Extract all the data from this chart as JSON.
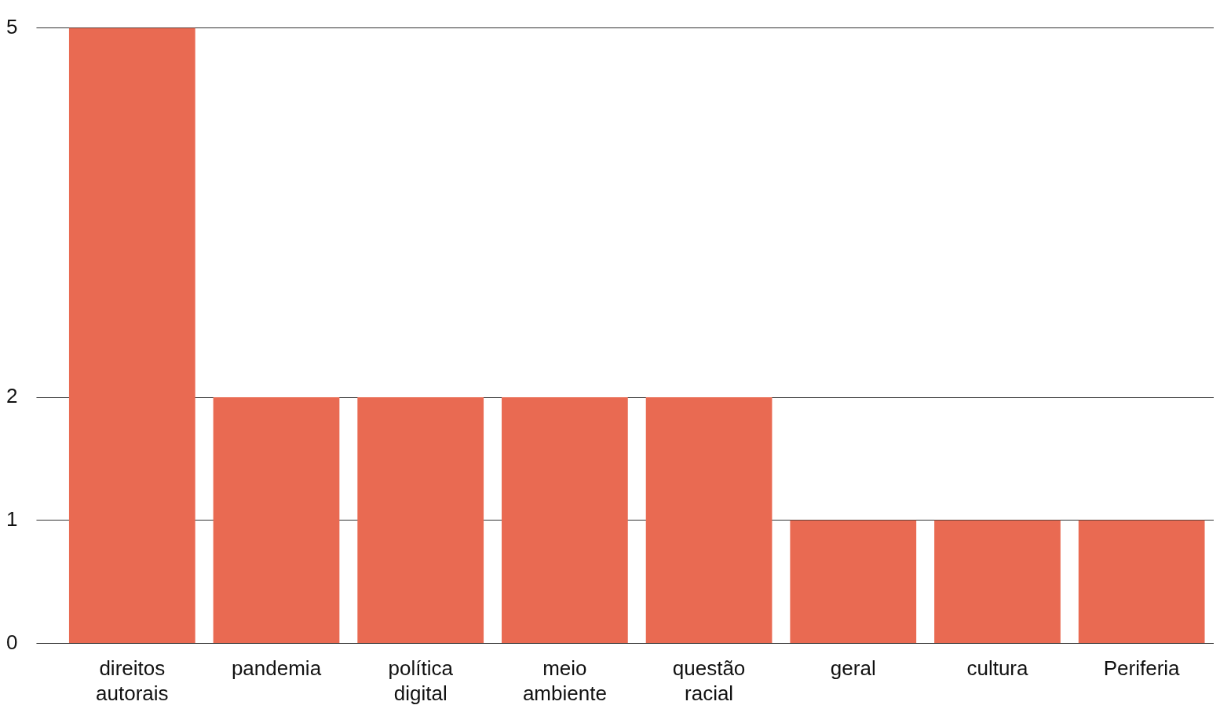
{
  "chart_data": {
    "type": "bar",
    "categories": [
      "direitos autorais",
      "pandemia",
      "política digital",
      "meio ambiente",
      "questão racial",
      "geral",
      "cultura",
      "Periferia"
    ],
    "values": [
      5,
      2,
      2,
      2,
      2,
      1,
      1,
      1
    ],
    "color": "#e96a52",
    "ylim": [
      0,
      5
    ],
    "yticks": [
      0,
      1,
      2,
      5
    ],
    "grid": "y",
    "legend": false
  }
}
